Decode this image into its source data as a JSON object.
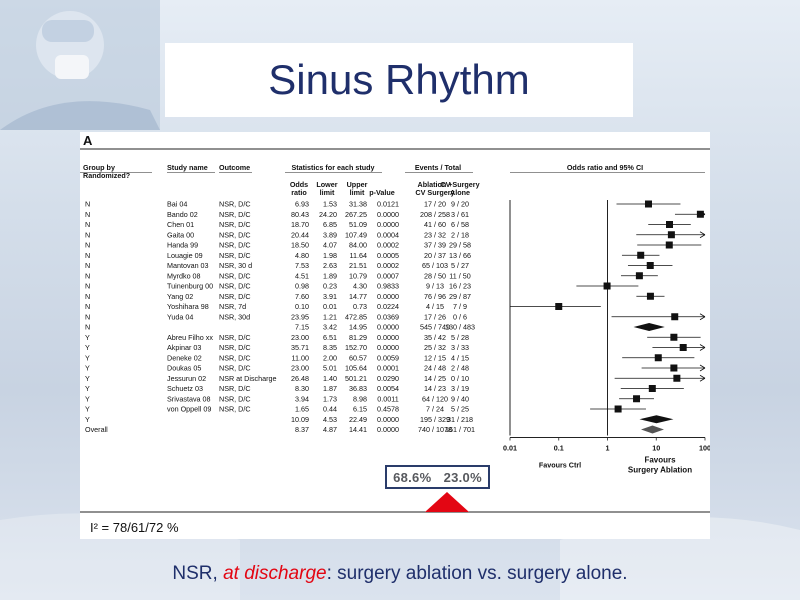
{
  "slide": {
    "title": "Sinus Rhythm",
    "caption_pre": "NSR, ",
    "caption_em": "at discharge",
    "caption_post": ": surgery  ablation vs. surgery alone.",
    "i2_label": "I² = 78/61/72 %",
    "highlight_left": "68.6%",
    "highlight_right": "23.0%",
    "colors": {
      "title": "#1f2f6b",
      "caption_em": "#e30613",
      "arrow": "#e30613",
      "highlight_border": "#2a3c6a"
    }
  },
  "panel": {
    "label": "A",
    "headers": {
      "group": [
        "Group by",
        "Randomized?"
      ],
      "study": "Study name",
      "outcome": "Outcome",
      "stats_group": "Statistics for each study",
      "events_group": "Events / Total",
      "or_group": "Odds ratio and 95% CI",
      "odds": [
        "Odds",
        "ratio"
      ],
      "lower": [
        "Lower",
        "limit"
      ],
      "upper": [
        "Upper",
        "limit"
      ],
      "pvalue": "p-Value",
      "ablation": [
        "Ablation +",
        "CV Surgery"
      ],
      "cvsurgery": [
        "CV Surgery",
        "Alone"
      ]
    },
    "axis_ticks": [
      "0.01",
      "0.1",
      "1",
      "10",
      "100"
    ],
    "favours_left": [
      "Favours Ctrl"
    ],
    "favours_right": [
      "Favours",
      "Surgery Ablation"
    ]
  },
  "chart_data": {
    "type": "forest",
    "rows": [
      {
        "group": "N",
        "study": "Bai 04",
        "outcome": "NSR, D/C",
        "or": "6.93",
        "lower": "1.53",
        "upper": "31.38",
        "p": "0.0121",
        "abl": "17 / 20",
        "ctrl": "9 / 20",
        "kind": "study",
        "or_v": 6.93,
        "lo_v": 1.53,
        "hi_v": 31.38
      },
      {
        "group": "N",
        "study": "Bando 02",
        "outcome": "NSR, D/C",
        "or": "80.43",
        "lower": "24.20",
        "upper": "267.25",
        "p": "0.0000",
        "abl": "208 / 258",
        "ctrl": "3 / 61",
        "kind": "study",
        "or_v": 80.43,
        "lo_v": 24.2,
        "hi_v": 267.25
      },
      {
        "group": "N",
        "study": "Chen 01",
        "outcome": "NSR, D/C",
        "or": "18.70",
        "lower": "6.85",
        "upper": "51.09",
        "p": "0.0000",
        "abl": "41 / 60",
        "ctrl": "6 / 58",
        "kind": "study",
        "or_v": 18.7,
        "lo_v": 6.85,
        "hi_v": 51.09
      },
      {
        "group": "N",
        "study": "Gaita 00",
        "outcome": "NSR, D/C",
        "or": "20.44",
        "lower": "3.89",
        "upper": "107.49",
        "p": "0.0004",
        "abl": "23 / 32",
        "ctrl": "2 / 18",
        "kind": "study",
        "or_v": 20.44,
        "lo_v": 3.89,
        "hi_v": 107.49
      },
      {
        "group": "N",
        "study": "Handa 99",
        "outcome": "NSR, D/C",
        "or": "18.50",
        "lower": "4.07",
        "upper": "84.00",
        "p": "0.0002",
        "abl": "37 / 39",
        "ctrl": "29 / 58",
        "kind": "study",
        "or_v": 18.5,
        "lo_v": 4.07,
        "hi_v": 84.0
      },
      {
        "group": "N",
        "study": "Louagie 09",
        "outcome": "NSR, D/C",
        "or": "4.80",
        "lower": "1.98",
        "upper": "11.64",
        "p": "0.0005",
        "abl": "20 / 37",
        "ctrl": "13 / 66",
        "kind": "study",
        "or_v": 4.8,
        "lo_v": 1.98,
        "hi_v": 11.64
      },
      {
        "group": "N",
        "study": "Mantovan 03",
        "outcome": "NSR, 30 d",
        "or": "7.53",
        "lower": "2.63",
        "upper": "21.51",
        "p": "0.0002",
        "abl": "65 / 103",
        "ctrl": "5 / 27",
        "kind": "study",
        "or_v": 7.53,
        "lo_v": 2.63,
        "hi_v": 21.51
      },
      {
        "group": "N",
        "study": "Myrdko 08",
        "outcome": "NSR, D/C",
        "or": "4.51",
        "lower": "1.89",
        "upper": "10.79",
        "p": "0.0007",
        "abl": "28 / 50",
        "ctrl": "11 / 50",
        "kind": "study",
        "or_v": 4.51,
        "lo_v": 1.89,
        "hi_v": 10.79
      },
      {
        "group": "N",
        "study": "Tuinenburg 00",
        "outcome": "NSR, D/C",
        "or": "0.98",
        "lower": "0.23",
        "upper": "4.30",
        "p": "0.9833",
        "abl": "9 / 13",
        "ctrl": "16 / 23",
        "kind": "study",
        "or_v": 0.98,
        "lo_v": 0.23,
        "hi_v": 4.3
      },
      {
        "group": "N",
        "study": "Yang 02",
        "outcome": "NSR, D/C",
        "or": "7.60",
        "lower": "3.91",
        "upper": "14.77",
        "p": "0.0000",
        "abl": "76 / 96",
        "ctrl": "29 / 87",
        "kind": "study",
        "or_v": 7.6,
        "lo_v": 3.91,
        "hi_v": 14.77
      },
      {
        "group": "N",
        "study": "Yoshihara 98",
        "outcome": "NSR, 7d",
        "or": "0.10",
        "lower": "0.01",
        "upper": "0.73",
        "p": "0.0224",
        "abl": "4 / 15",
        "ctrl": "7 / 9",
        "kind": "study",
        "or_v": 0.1,
        "lo_v": 0.01,
        "hi_v": 0.73
      },
      {
        "group": "N",
        "study": "Yuda 04",
        "outcome": "NSR, 30d",
        "or": "23.95",
        "lower": "1.21",
        "upper": "472.85",
        "p": "0.0369",
        "abl": "17 / 26",
        "ctrl": "0 / 6",
        "kind": "study",
        "or_v": 23.95,
        "lo_v": 1.21,
        "hi_v": 472.85
      },
      {
        "group": "N",
        "study": "",
        "outcome": "",
        "or": "7.15",
        "lower": "3.42",
        "upper": "14.95",
        "p": "0.0000",
        "abl": "545 / 749",
        "ctrl": "130 / 483",
        "kind": "subtotal",
        "or_v": 7.15,
        "lo_v": 3.42,
        "hi_v": 14.95
      },
      {
        "group": "Y",
        "study": "Abreu Filho xx",
        "outcome": "NSR, D/C",
        "or": "23.00",
        "lower": "6.51",
        "upper": "81.29",
        "p": "0.0000",
        "abl": "35 / 42",
        "ctrl": "5 / 28",
        "kind": "study",
        "or_v": 23.0,
        "lo_v": 6.51,
        "hi_v": 81.29
      },
      {
        "group": "Y",
        "study": "Akpinar 03",
        "outcome": "NSR, D/C",
        "or": "35.71",
        "lower": "8.35",
        "upper": "152.70",
        "p": "0.0000",
        "abl": "25 / 32",
        "ctrl": "3 / 33",
        "kind": "study",
        "or_v": 35.71,
        "lo_v": 8.35,
        "hi_v": 152.7
      },
      {
        "group": "Y",
        "study": "Deneke 02",
        "outcome": "NSR, D/C",
        "or": "11.00",
        "lower": "2.00",
        "upper": "60.57",
        "p": "0.0059",
        "abl": "12 / 15",
        "ctrl": "4 / 15",
        "kind": "study",
        "or_v": 11.0,
        "lo_v": 2.0,
        "hi_v": 60.57
      },
      {
        "group": "Y",
        "study": "Doukas 05",
        "outcome": "NSR, D/C",
        "or": "23.00",
        "lower": "5.01",
        "upper": "105.64",
        "p": "0.0001",
        "abl": "24 / 48",
        "ctrl": "2 / 48",
        "kind": "study",
        "or_v": 23.0,
        "lo_v": 5.01,
        "hi_v": 105.64
      },
      {
        "group": "Y",
        "study": "Jessurun 02",
        "outcome": "NSR at Discharge",
        "or": "26.48",
        "lower": "1.40",
        "upper": "501.21",
        "p": "0.0290",
        "abl": "14 / 25",
        "ctrl": "0 / 10",
        "kind": "study",
        "or_v": 26.48,
        "lo_v": 1.4,
        "hi_v": 501.21
      },
      {
        "group": "Y",
        "study": "Schuetz 03",
        "outcome": "NSR, D/C",
        "or": "8.30",
        "lower": "1.87",
        "upper": "36.83",
        "p": "0.0054",
        "abl": "14 / 23",
        "ctrl": "3 / 19",
        "kind": "study",
        "or_v": 8.3,
        "lo_v": 1.87,
        "hi_v": 36.83
      },
      {
        "group": "Y",
        "study": "Srivastava 08",
        "outcome": "NSR, D/C",
        "or": "3.94",
        "lower": "1.73",
        "upper": "8.98",
        "p": "0.0011",
        "abl": "64 / 120",
        "ctrl": "9 / 40",
        "kind": "study",
        "or_v": 3.94,
        "lo_v": 1.73,
        "hi_v": 8.98
      },
      {
        "group": "Y",
        "study": "von Oppell 09",
        "outcome": "NSR, D/C",
        "or": "1.65",
        "lower": "0.44",
        "upper": "6.15",
        "p": "0.4578",
        "abl": "7 / 24",
        "ctrl": "5 / 25",
        "kind": "study",
        "or_v": 1.65,
        "lo_v": 0.44,
        "hi_v": 6.15
      },
      {
        "group": "Y",
        "study": "",
        "outcome": "",
        "or": "10.09",
        "lower": "4.53",
        "upper": "22.49",
        "p": "0.0000",
        "abl": "195 / 329",
        "ctrl": "31 / 218",
        "kind": "subtotal",
        "or_v": 10.09,
        "lo_v": 4.53,
        "hi_v": 22.49
      },
      {
        "group": "Overall",
        "study": "",
        "outcome": "",
        "or": "8.37",
        "lower": "4.87",
        "upper": "14.41",
        "p": "0.0000",
        "abl": "740 / 1078",
        "ctrl": "161 / 701",
        "kind": "overall",
        "or_v": 8.37,
        "lo_v": 4.87,
        "hi_v": 14.41
      }
    ],
    "x_scale": "log",
    "xlim": [
      0.01,
      100
    ]
  }
}
